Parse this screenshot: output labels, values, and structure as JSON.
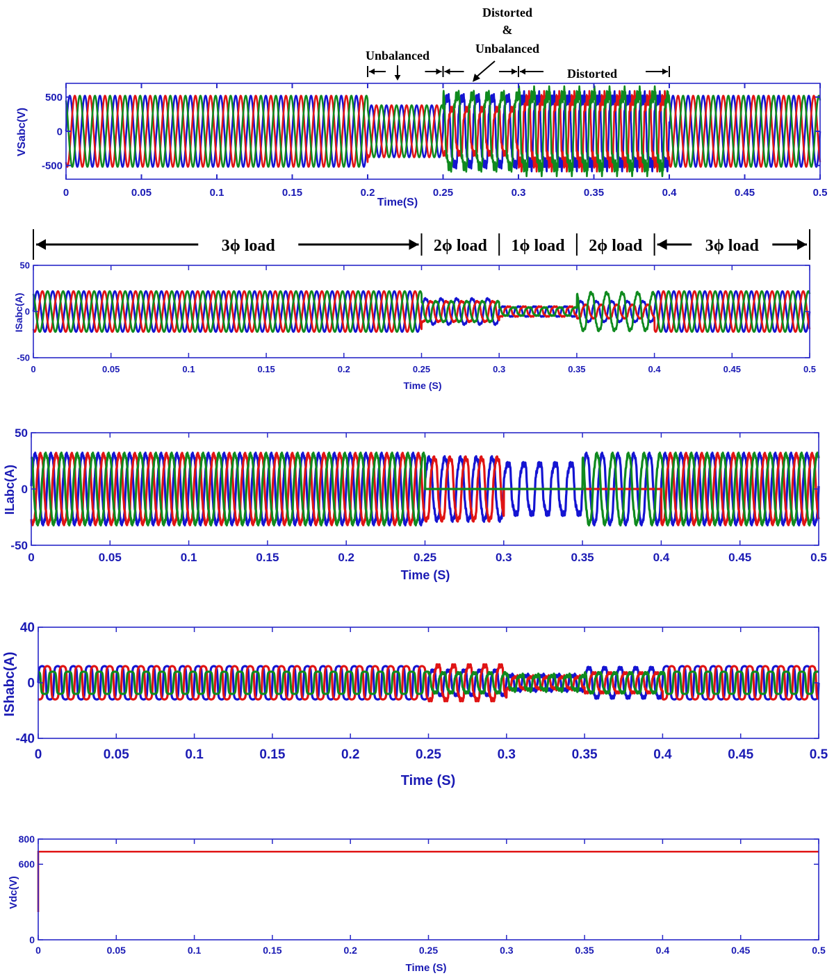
{
  "colors": {
    "phase_a": "#1414d2",
    "phase_b": "#e01414",
    "phase_c": "#0f8a1e",
    "axis": "#2828c8",
    "text": "#1a1ab4"
  },
  "annotations_top": {
    "unbalanced": "Unbalanced",
    "distorted_unbalanced_line1": "Distorted",
    "distorted_unbalanced_line2": "&",
    "distorted_unbalanced_line3": "Unbalanced",
    "distorted": "Distorted"
  },
  "load_segments": [
    {
      "label": "3ϕ load",
      "x_start": 0,
      "x_end": 0.25
    },
    {
      "label": "2ϕ load",
      "x_start": 0.25,
      "x_end": 0.3
    },
    {
      "label": "1ϕ load",
      "x_start": 0.3,
      "x_end": 0.35
    },
    {
      "label": "2ϕ load",
      "x_start": 0.35,
      "x_end": 0.4
    },
    {
      "label": "3ϕ load",
      "x_start": 0.4,
      "x_end": 0.5
    }
  ],
  "chart_data": [
    {
      "type": "line",
      "ylabel": "VSabc(V)",
      "xlabel": "Time(S)",
      "xlim": [
        0,
        0.5
      ],
      "ylim": [
        -700,
        700
      ],
      "x_ticks": [
        "0",
        "0.05",
        "0.1",
        "0.15",
        "0.2",
        "0.25",
        "0.3",
        "0.35",
        "0.4",
        "0.45",
        "0.5"
      ],
      "y_ticks": [
        "500",
        "0",
        "-500"
      ],
      "y_tick_values": [
        500,
        0,
        -500
      ],
      "frequency_hz": 100,
      "series": [
        {
          "phase": "a",
          "segments": [
            {
              "t": [
                0,
                0.2
              ],
              "amplitude": 520
            },
            {
              "t": [
                0.2,
                0.25
              ],
              "amplitude": 380
            },
            {
              "t": [
                0.25,
                0.3
              ],
              "amplitude": 560,
              "distortion": 0.35
            },
            {
              "t": [
                0.3,
                0.4
              ],
              "amplitude": 560,
              "distortion": 0.45
            },
            {
              "t": [
                0.4,
                0.5
              ],
              "amplitude": 520
            }
          ]
        },
        {
          "phase": "b",
          "segments": [
            {
              "t": [
                0,
                0.2
              ],
              "amplitude": 520
            },
            {
              "t": [
                0.2,
                0.25
              ],
              "amplitude": 380
            },
            {
              "t": [
                0.25,
                0.3
              ],
              "amplitude": 380,
              "distortion": 0.35
            },
            {
              "t": [
                0.3,
                0.4
              ],
              "amplitude": 560,
              "distortion": 0.45
            },
            {
              "t": [
                0.4,
                0.5
              ],
              "amplitude": 520
            }
          ]
        },
        {
          "phase": "c",
          "segments": [
            {
              "t": [
                0,
                0.2
              ],
              "amplitude": 520
            },
            {
              "t": [
                0.2,
                0.25
              ],
              "amplitude": 380
            },
            {
              "t": [
                0.25,
                0.3
              ],
              "amplitude": 600,
              "distortion": 0.35
            },
            {
              "t": [
                0.3,
                0.4
              ],
              "amplitude": 620,
              "distortion": 0.45
            },
            {
              "t": [
                0.4,
                0.5
              ],
              "amplitude": 520
            }
          ]
        }
      ]
    },
    {
      "type": "line",
      "ylabel": "ISabc(A)",
      "xlabel": "Time (S)",
      "xlim": [
        0,
        0.5
      ],
      "ylim": [
        -50,
        50
      ],
      "x_ticks": [
        "0",
        "0.05",
        "0.1",
        "0.15",
        "0.2",
        "0.25",
        "0.3",
        "0.35",
        "0.4",
        "0.45",
        "0.5"
      ],
      "y_ticks": [
        "50",
        "0",
        "-50"
      ],
      "y_tick_values": [
        50,
        0,
        -50
      ],
      "frequency_hz": 100,
      "series": [
        {
          "phase": "a",
          "segments": [
            {
              "t": [
                0,
                0.25
              ],
              "amplitude": 22
            },
            {
              "t": [
                0.25,
                0.3
              ],
              "amplitude": 15,
              "distortion": 0.2
            },
            {
              "t": [
                0.3,
                0.35
              ],
              "amplitude": 6,
              "distortion": 0.3
            },
            {
              "t": [
                0.35,
                0.4
              ],
              "amplitude": 12,
              "distortion": 0.2
            },
            {
              "t": [
                0.4,
                0.5
              ],
              "amplitude": 22
            }
          ]
        },
        {
          "phase": "b",
          "segments": [
            {
              "t": [
                0,
                0.25
              ],
              "amplitude": 22
            },
            {
              "t": [
                0.25,
                0.3
              ],
              "amplitude": 12,
              "distortion": 0.2
            },
            {
              "t": [
                0.3,
                0.35
              ],
              "amplitude": 6,
              "distortion": 0.3
            },
            {
              "t": [
                0.35,
                0.4
              ],
              "amplitude": 8,
              "distortion": 0.2
            },
            {
              "t": [
                0.4,
                0.5
              ],
              "amplitude": 22
            }
          ]
        },
        {
          "phase": "c",
          "segments": [
            {
              "t": [
                0,
                0.25
              ],
              "amplitude": 22
            },
            {
              "t": [
                0.25,
                0.3
              ],
              "amplitude": 12,
              "distortion": 0.2
            },
            {
              "t": [
                0.3,
                0.35
              ],
              "amplitude": 5,
              "distortion": 0.3
            },
            {
              "t": [
                0.35,
                0.4
              ],
              "amplitude": 22,
              "distortion": 0.2
            },
            {
              "t": [
                0.4,
                0.5
              ],
              "amplitude": 22
            }
          ]
        }
      ]
    },
    {
      "type": "line",
      "ylabel": "ILabc(A)",
      "xlabel": "Time (S)",
      "xlim": [
        0,
        0.5
      ],
      "ylim": [
        -50,
        50
      ],
      "x_ticks": [
        "0",
        "0.05",
        "0.1",
        "0.15",
        "0.2",
        "0.25",
        "0.3",
        "0.35",
        "0.4",
        "0.45",
        "0.5"
      ],
      "y_ticks": [
        "50",
        "0",
        "-50"
      ],
      "y_tick_values": [
        50,
        0,
        -50
      ],
      "frequency_hz": 100,
      "series": [
        {
          "phase": "a",
          "segments": [
            {
              "t": [
                0,
                0.25
              ],
              "amplitude": 33,
              "distortion": 0.15
            },
            {
              "t": [
                0.25,
                0.3
              ],
              "amplitude": 30,
              "distortion": 0.2
            },
            {
              "t": [
                0.3,
                0.35
              ],
              "amplitude": 25,
              "distortion": 0.3
            },
            {
              "t": [
                0.35,
                0.4
              ],
              "amplitude": 33,
              "distortion": 0.15
            },
            {
              "t": [
                0.4,
                0.5
              ],
              "amplitude": 33,
              "distortion": 0.15
            }
          ]
        },
        {
          "phase": "b",
          "segments": [
            {
              "t": [
                0,
                0.25
              ],
              "amplitude": 33,
              "distortion": 0.15
            },
            {
              "t": [
                0.25,
                0.3
              ],
              "amplitude": 30,
              "distortion": 0.2
            },
            {
              "t": [
                0.3,
                0.35
              ],
              "amplitude": 0
            },
            {
              "t": [
                0.35,
                0.4
              ],
              "amplitude": 0
            },
            {
              "t": [
                0.4,
                0.5
              ],
              "amplitude": 33,
              "distortion": 0.15
            }
          ]
        },
        {
          "phase": "c",
          "segments": [
            {
              "t": [
                0,
                0.25
              ],
              "amplitude": 33,
              "distortion": 0.15
            },
            {
              "t": [
                0.25,
                0.3
              ],
              "amplitude": 0
            },
            {
              "t": [
                0.3,
                0.35
              ],
              "amplitude": 0
            },
            {
              "t": [
                0.35,
                0.4
              ],
              "amplitude": 33,
              "distortion": 0.15
            },
            {
              "t": [
                0.4,
                0.5
              ],
              "amplitude": 33,
              "distortion": 0.15
            }
          ]
        }
      ]
    },
    {
      "type": "line",
      "ylabel": "IShabc(A)",
      "xlabel": "Time (S)",
      "xlim": [
        0,
        0.5
      ],
      "ylim": [
        -40,
        40
      ],
      "x_ticks": [
        "0",
        "0.05",
        "0.1",
        "0.15",
        "0.2",
        "0.25",
        "0.3",
        "0.35",
        "0.4",
        "0.45",
        "0.5"
      ],
      "y_ticks": [
        "40",
        "0",
        "-40"
      ],
      "y_tick_values": [
        40,
        0,
        -40
      ],
      "frequency_hz": 100,
      "series": [
        {
          "phase": "a",
          "segments": [
            {
              "t": [
                0,
                0.25
              ],
              "amplitude": 12,
              "squareness": 0.85
            },
            {
              "t": [
                0.25,
                0.3
              ],
              "amplitude": 10,
              "distortion": 0.3
            },
            {
              "t": [
                0.3,
                0.35
              ],
              "amplitude": 6,
              "distortion": 0.5
            },
            {
              "t": [
                0.35,
                0.4
              ],
              "amplitude": 12,
              "distortion": 0.3
            },
            {
              "t": [
                0.4,
                0.5
              ],
              "amplitude": 12,
              "squareness": 0.85
            }
          ]
        },
        {
          "phase": "b",
          "segments": [
            {
              "t": [
                0,
                0.25
              ],
              "amplitude": 12,
              "squareness": 0.85
            },
            {
              "t": [
                0.25,
                0.3
              ],
              "amplitude": 14,
              "distortion": 0.3
            },
            {
              "t": [
                0.3,
                0.35
              ],
              "amplitude": 5,
              "distortion": 0.5
            },
            {
              "t": [
                0.35,
                0.4
              ],
              "amplitude": 8,
              "distortion": 0.3
            },
            {
              "t": [
                0.4,
                0.5
              ],
              "amplitude": 12,
              "squareness": 0.85
            }
          ]
        },
        {
          "phase": "c",
          "segments": [
            {
              "t": [
                0,
                0.25
              ],
              "amplitude": 8,
              "squareness": 0.9
            },
            {
              "t": [
                0.25,
                0.3
              ],
              "amplitude": 8,
              "distortion": 0.3
            },
            {
              "t": [
                0.3,
                0.35
              ],
              "amplitude": 6,
              "distortion": 0.5
            },
            {
              "t": [
                0.35,
                0.4
              ],
              "amplitude": 8,
              "distortion": 0.3
            },
            {
              "t": [
                0.4,
                0.5
              ],
              "amplitude": 8,
              "squareness": 0.9
            }
          ]
        }
      ]
    },
    {
      "type": "line",
      "ylabel": "Vdc(V)",
      "xlabel": "Time (S)",
      "xlim": [
        0,
        0.5
      ],
      "ylim": [
        0,
        800
      ],
      "x_ticks": [
        "0",
        "0.05",
        "0.1",
        "0.15",
        "0.2",
        "0.25",
        "0.3",
        "0.35",
        "0.4",
        "0.45",
        "0.5"
      ],
      "y_ticks": [
        "800",
        "600",
        "0"
      ],
      "y_tick_values": [
        800,
        600,
        0
      ],
      "series": [
        {
          "phase": "dc",
          "constant": 700
        }
      ]
    }
  ]
}
